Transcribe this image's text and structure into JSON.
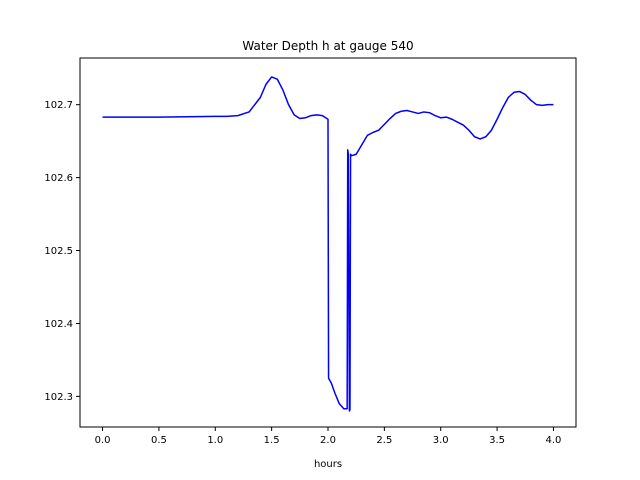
{
  "chart_data": {
    "type": "line",
    "title": "Water Depth h at gauge 540",
    "xlabel": "hours",
    "ylabel": "",
    "xlim": [
      -0.2,
      4.2
    ],
    "ylim": [
      102.258,
      102.764
    ],
    "xticks": [
      0.0,
      0.5,
      1.0,
      1.5,
      2.0,
      2.5,
      3.0,
      3.5,
      4.0
    ],
    "xtick_labels": [
      "0.0",
      "0.5",
      "1.0",
      "1.5",
      "2.0",
      "2.5",
      "3.0",
      "3.5",
      "4.0"
    ],
    "yticks": [
      102.3,
      102.4,
      102.5,
      102.6,
      102.7
    ],
    "ytick_labels": [
      "102.3",
      "102.4",
      "102.5",
      "102.6",
      "102.7"
    ],
    "grid": false,
    "series": [
      {
        "color": "#0000ff",
        "x": [
          0.0,
          0.5,
          1.0,
          1.1,
          1.2,
          1.3,
          1.4,
          1.45,
          1.5,
          1.55,
          1.6,
          1.65,
          1.7,
          1.75,
          1.8,
          1.85,
          1.9,
          1.95,
          2.0,
          2.005,
          2.03,
          2.06,
          2.1,
          2.14,
          2.17,
          2.175,
          2.18,
          2.19,
          2.195,
          2.2,
          2.21,
          2.25,
          2.3,
          2.35,
          2.4,
          2.45,
          2.5,
          2.55,
          2.6,
          2.65,
          2.7,
          2.75,
          2.8,
          2.85,
          2.9,
          2.95,
          3.0,
          3.05,
          3.1,
          3.15,
          3.2,
          3.25,
          3.3,
          3.35,
          3.4,
          3.45,
          3.5,
          3.55,
          3.6,
          3.65,
          3.7,
          3.75,
          3.8,
          3.85,
          3.9,
          3.95,
          4.0
        ],
        "y": [
          102.683,
          102.683,
          102.684,
          102.684,
          102.685,
          102.69,
          102.71,
          102.728,
          102.738,
          102.735,
          102.72,
          102.7,
          102.686,
          102.681,
          102.682,
          102.685,
          102.686,
          102.685,
          102.68,
          102.325,
          102.318,
          102.305,
          102.29,
          102.283,
          102.283,
          102.638,
          102.633,
          102.28,
          102.282,
          102.632,
          102.63,
          102.632,
          102.645,
          102.658,
          102.662,
          102.665,
          102.673,
          102.681,
          102.688,
          102.691,
          102.692,
          102.69,
          102.688,
          102.69,
          102.689,
          102.685,
          102.682,
          102.683,
          102.68,
          102.676,
          102.672,
          102.665,
          102.656,
          102.653,
          102.656,
          102.665,
          102.68,
          102.696,
          102.71,
          102.717,
          102.718,
          102.714,
          102.706,
          102.7,
          102.699,
          102.7,
          102.7
        ]
      }
    ]
  }
}
